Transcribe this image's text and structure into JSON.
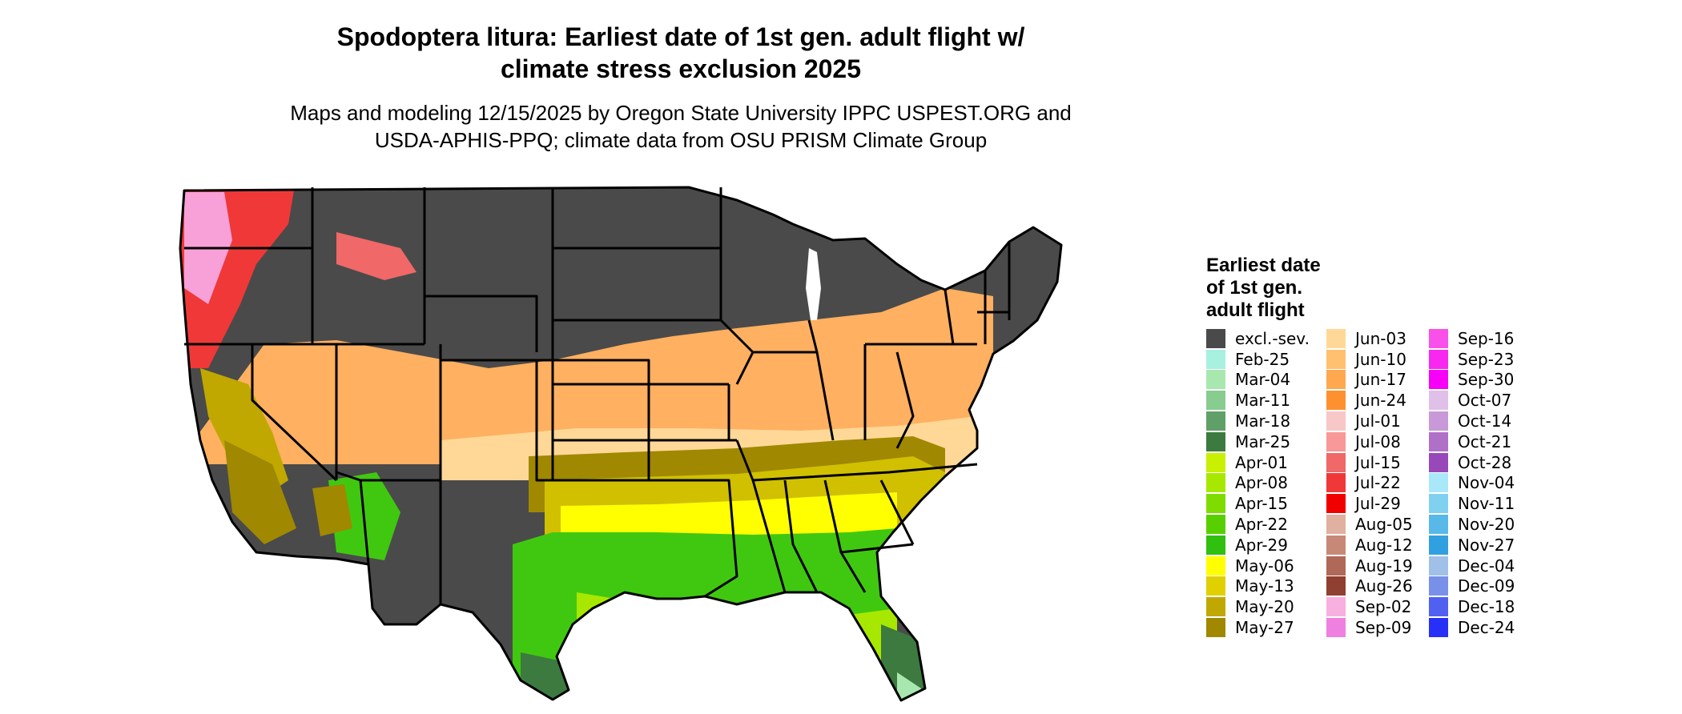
{
  "title_line1": "Spodoptera litura: Earliest date of 1st gen. adult flight w/",
  "title_line2": "climate stress exclusion 2025",
  "subtitle_line1": "Maps and modeling 12/15/2025 by Oregon State University IPPC USPEST.ORG and",
  "subtitle_line2": "USDA-APHIS-PPQ; climate data from OSU PRISM Climate Group",
  "legend": {
    "title_line1": "Earliest date",
    "title_line2": "of 1st gen.",
    "title_line3": "adult flight",
    "columns": [
      [
        {
          "label": "excl.-sev.",
          "color": "#4a4a4a"
        },
        {
          "label": "Feb-25",
          "color": "#a8f0e0"
        },
        {
          "label": "Mar-04",
          "color": "#a8e8b0"
        },
        {
          "label": "Mar-11",
          "color": "#88cc90"
        },
        {
          "label": "Mar-18",
          "color": "#60a068"
        },
        {
          "label": "Mar-25",
          "color": "#3c7a40"
        },
        {
          "label": "Apr-01",
          "color": "#c8f000"
        },
        {
          "label": "Apr-08",
          "color": "#a8e800"
        },
        {
          "label": "Apr-15",
          "color": "#80dc00"
        },
        {
          "label": "Apr-22",
          "color": "#58d000"
        },
        {
          "label": "Apr-29",
          "color": "#30c010"
        },
        {
          "label": "May-06",
          "color": "#ffff00"
        },
        {
          "label": "May-13",
          "color": "#e0d000"
        },
        {
          "label": "May-20",
          "color": "#c0a800"
        },
        {
          "label": "May-27",
          "color": "#a08800"
        }
      ],
      [
        {
          "label": "Jun-03",
          "color": "#ffd898"
        },
        {
          "label": "Jun-10",
          "color": "#ffc070"
        },
        {
          "label": "Jun-17",
          "color": "#ffa850"
        },
        {
          "label": "Jun-24",
          "color": "#ff9030"
        },
        {
          "label": "Jul-01",
          "color": "#f8c8c8"
        },
        {
          "label": "Jul-08",
          "color": "#f89898"
        },
        {
          "label": "Jul-15",
          "color": "#f06868"
        },
        {
          "label": "Jul-22",
          "color": "#f03838"
        },
        {
          "label": "Jul-29",
          "color": "#f00000"
        },
        {
          "label": "Aug-05",
          "color": "#e0b0a0"
        },
        {
          "label": "Aug-12",
          "color": "#c88878"
        },
        {
          "label": "Aug-19",
          "color": "#b06858"
        },
        {
          "label": "Aug-26",
          "color": "#904030"
        },
        {
          "label": "Sep-02",
          "color": "#f8b0e0"
        },
        {
          "label": "Sep-09",
          "color": "#f080e0"
        }
      ],
      [
        {
          "label": "Sep-16",
          "color": "#f850e8"
        },
        {
          "label": "Sep-23",
          "color": "#f828f0"
        },
        {
          "label": "Sep-30",
          "color": "#f800f8"
        },
        {
          "label": "Oct-07",
          "color": "#e0c0e8"
        },
        {
          "label": "Oct-14",
          "color": "#c898d8"
        },
        {
          "label": "Oct-21",
          "color": "#b070c8"
        },
        {
          "label": "Oct-28",
          "color": "#9848b8"
        },
        {
          "label": "Nov-04",
          "color": "#a8e8f8"
        },
        {
          "label": "Nov-11",
          "color": "#80d0f0"
        },
        {
          "label": "Nov-20",
          "color": "#58b8e8"
        },
        {
          "label": "Nov-27",
          "color": "#30a0e0"
        },
        {
          "label": "Dec-04",
          "color": "#a0c0e8"
        },
        {
          "label": "Dec-09",
          "color": "#7890e8"
        },
        {
          "label": "Dec-18",
          "color": "#5060f0"
        },
        {
          "label": "Dec-24",
          "color": "#2830f8"
        }
      ]
    ]
  }
}
